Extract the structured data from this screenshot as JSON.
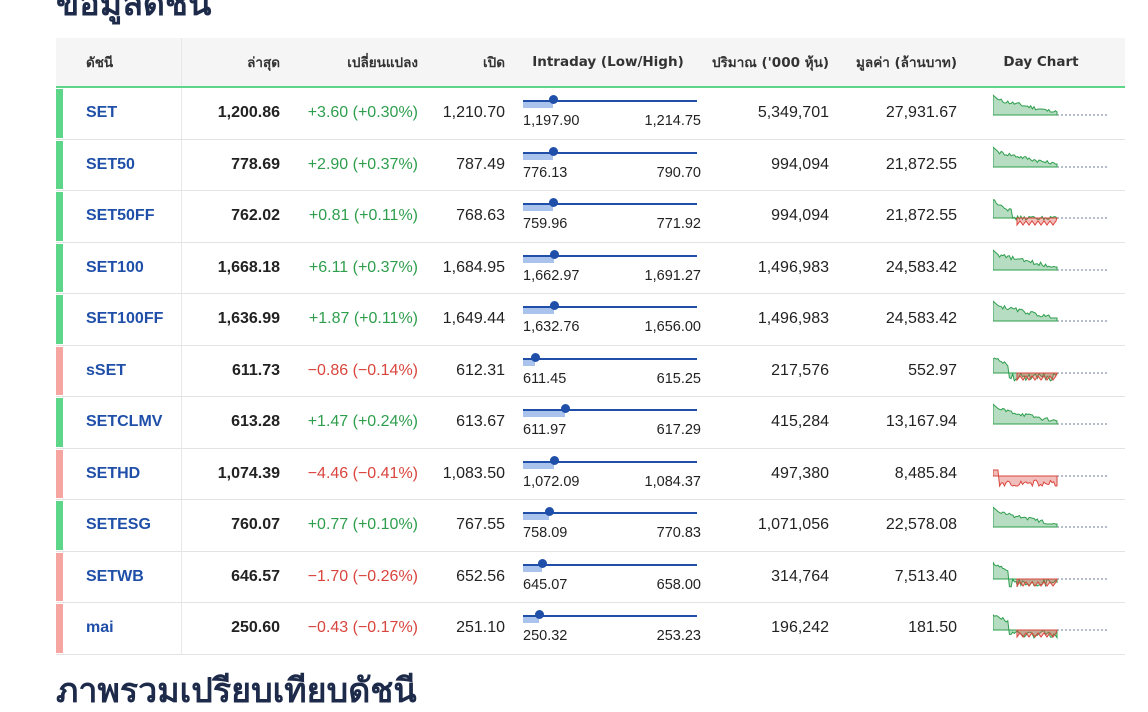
{
  "page": {
    "section_title": "ข้อมูลดัชนี",
    "next_section_title": "ภาพรวมเปรียบเทียบดัชนี"
  },
  "table": {
    "headers": {
      "name": "ดัชนี",
      "last": "ล่าสุด",
      "change": "เปลี่ยนแปลง",
      "open": "เปิด",
      "intraday": "Intraday (Low/High)",
      "volume": "ปริมาณ ('000 หุ้น)",
      "value": "มูลค่า (ล้านบาท)",
      "day_chart": "Day Chart"
    },
    "colors": {
      "up": "#2e9e4d",
      "down": "#d9453d",
      "up_bar": "#5ed68a",
      "down_bar": "#f6a5a0"
    },
    "rows": [
      {
        "name": "SET",
        "last": "1,200.86",
        "change": "+3.60 (+0.30%)",
        "dir": "up",
        "open": "1,210.70",
        "low": "1,197.90",
        "high": "1,214.75",
        "pos": 0.17,
        "volume": "5,349,701",
        "value": "27,931.67",
        "trend": "up"
      },
      {
        "name": "SET50",
        "last": "778.69",
        "change": "+2.90 (+0.37%)",
        "dir": "up",
        "open": "787.49",
        "low": "776.13",
        "high": "790.70",
        "pos": 0.17,
        "volume": "994,094",
        "value": "21,872.55",
        "trend": "up"
      },
      {
        "name": "SET50FF",
        "last": "762.02",
        "change": "+0.81 (+0.11%)",
        "dir": "up",
        "open": "768.63",
        "low": "759.96",
        "high": "771.92",
        "pos": 0.17,
        "volume": "994,094",
        "value": "21,872.55",
        "trend": "mixed-up"
      },
      {
        "name": "SET100",
        "last": "1,668.18",
        "change": "+6.11 (+0.37%)",
        "dir": "up",
        "open": "1,684.95",
        "low": "1,662.97",
        "high": "1,691.27",
        "pos": 0.18,
        "volume": "1,496,983",
        "value": "24,583.42",
        "trend": "up"
      },
      {
        "name": "SET100FF",
        "last": "1,636.99",
        "change": "+1.87 (+0.11%)",
        "dir": "up",
        "open": "1,649.44",
        "low": "1,632.76",
        "high": "1,656.00",
        "pos": 0.18,
        "volume": "1,496,983",
        "value": "24,583.42",
        "trend": "up"
      },
      {
        "name": "sSET",
        "last": "611.73",
        "change": "−0.86 (−0.14%)",
        "dir": "down",
        "open": "612.31",
        "low": "611.45",
        "high": "615.25",
        "pos": 0.07,
        "volume": "217,576",
        "value": "552.97",
        "trend": "mixed-down"
      },
      {
        "name": "SETCLMV",
        "last": "613.28",
        "change": "+1.47 (+0.24%)",
        "dir": "up",
        "open": "613.67",
        "low": "611.97",
        "high": "617.29",
        "pos": 0.24,
        "volume": "415,284",
        "value": "13,167.94",
        "trend": "up"
      },
      {
        "name": "SETHD",
        "last": "1,074.39",
        "change": "−4.46 (−0.41%)",
        "dir": "down",
        "open": "1,083.50",
        "low": "1,072.09",
        "high": "1,084.37",
        "pos": 0.18,
        "volume": "497,380",
        "value": "8,485.84",
        "trend": "down"
      },
      {
        "name": "SETESG",
        "last": "760.07",
        "change": "+0.77 (+0.10%)",
        "dir": "up",
        "open": "767.55",
        "low": "758.09",
        "high": "770.83",
        "pos": 0.15,
        "volume": "1,071,056",
        "value": "22,578.08",
        "trend": "up"
      },
      {
        "name": "SETWB",
        "last": "646.57",
        "change": "−1.70 (−0.26%)",
        "dir": "down",
        "open": "652.56",
        "low": "645.07",
        "high": "658.00",
        "pos": 0.11,
        "volume": "314,764",
        "value": "7,513.40",
        "trend": "mixed-down"
      },
      {
        "name": "mai",
        "last": "250.60",
        "change": "−0.43 (−0.17%)",
        "dir": "down",
        "open": "251.10",
        "low": "250.32",
        "high": "253.23",
        "pos": 0.09,
        "volume": "196,242",
        "value": "181.50",
        "trend": "mixed-down"
      }
    ]
  }
}
